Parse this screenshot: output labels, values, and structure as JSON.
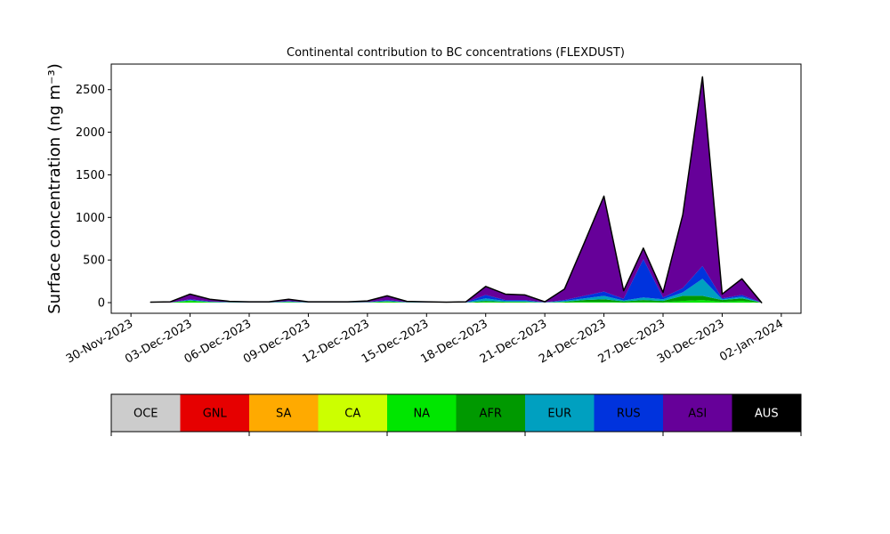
{
  "chart_data": {
    "type": "stacked_area",
    "title": "Continental contribution to BC concentrations (FLEXDUST)",
    "y_label": "Surface concentration (ng m⁻³)",
    "x": [
      "2023-12-01",
      "2023-12-02",
      "2023-12-03",
      "2023-12-04",
      "2023-12-05",
      "2023-12-06",
      "2023-12-07",
      "2023-12-08",
      "2023-12-09",
      "2023-12-10",
      "2023-12-11",
      "2023-12-12",
      "2023-12-13",
      "2023-12-14",
      "2023-12-15",
      "2023-12-16",
      "2023-12-17",
      "2023-12-18",
      "2023-12-19",
      "2023-12-20",
      "2023-12-21",
      "2023-12-22",
      "2023-12-23",
      "2023-12-24",
      "2023-12-25",
      "2023-12-26",
      "2023-12-27",
      "2023-12-28",
      "2023-12-29",
      "2023-12-30",
      "2023-12-31",
      "2024-01-01"
    ],
    "xlim": [
      "2023-11-29",
      "2024-01-03"
    ],
    "xticks": [
      {
        "value": "2023-11-30",
        "label": "30-Nov-2023"
      },
      {
        "value": "2023-12-03",
        "label": "03-Dec-2023"
      },
      {
        "value": "2023-12-06",
        "label": "06-Dec-2023"
      },
      {
        "value": "2023-12-09",
        "label": "09-Dec-2023"
      },
      {
        "value": "2023-12-12",
        "label": "12-Dec-2023"
      },
      {
        "value": "2023-12-15",
        "label": "15-Dec-2023"
      },
      {
        "value": "2023-12-18",
        "label": "18-Dec-2023"
      },
      {
        "value": "2023-12-21",
        "label": "21-Dec-2023"
      },
      {
        "value": "2023-12-24",
        "label": "24-Dec-2023"
      },
      {
        "value": "2023-12-27",
        "label": "27-Dec-2023"
      },
      {
        "value": "2023-12-30",
        "label": "30-Dec-2023"
      },
      {
        "value": "2024-01-02",
        "label": "02-Jan-2024"
      }
    ],
    "ylim": [
      -125,
      2800
    ],
    "yticks": [
      0,
      500,
      1000,
      1500,
      2000,
      2500
    ],
    "series": [
      {
        "name": "OCE",
        "color": "#cccccc",
        "values": [
          0,
          0,
          0,
          0,
          0,
          0,
          0,
          0,
          0,
          0,
          0,
          0,
          0,
          0,
          0,
          0,
          0,
          0,
          0,
          0,
          0,
          0,
          0,
          0,
          0,
          0,
          0,
          0,
          0,
          0,
          0,
          0
        ]
      },
      {
        "name": "GNL",
        "color": "#e60000",
        "values": [
          0,
          0,
          0,
          0,
          0,
          0,
          0,
          0,
          0,
          0,
          0,
          0,
          0,
          0,
          0,
          0,
          0,
          0,
          0,
          0,
          0,
          0,
          0,
          0,
          0,
          0,
          0,
          0,
          0,
          0,
          0,
          0
        ]
      },
      {
        "name": "SA",
        "color": "#ffaa00",
        "values": [
          0,
          0,
          0,
          0,
          0,
          0,
          0,
          0,
          0,
          0,
          0,
          0,
          0,
          0,
          0,
          0,
          0,
          0,
          0,
          0,
          0,
          0,
          0,
          0,
          0,
          0,
          0,
          0,
          0,
          0,
          0,
          0
        ]
      },
      {
        "name": "CA",
        "color": "#ccff00",
        "values": [
          0,
          0,
          0,
          0,
          0,
          0,
          0,
          0,
          0,
          0,
          0,
          0,
          0,
          0,
          0,
          0,
          0,
          0,
          0,
          0,
          0,
          0,
          0,
          0,
          0,
          0,
          0,
          0,
          0,
          0,
          0,
          0
        ]
      },
      {
        "name": "NA",
        "color": "#00e600",
        "values": [
          0,
          2,
          20,
          5,
          2,
          1,
          1,
          5,
          1,
          1,
          1,
          2,
          10,
          2,
          1,
          0,
          1,
          10,
          5,
          5,
          1,
          5,
          10,
          10,
          5,
          10,
          5,
          20,
          30,
          10,
          20,
          0
        ]
      },
      {
        "name": "AFR",
        "color": "#009900",
        "values": [
          0,
          0,
          5,
          2,
          1,
          1,
          1,
          3,
          1,
          1,
          1,
          2,
          5,
          1,
          1,
          0,
          1,
          10,
          5,
          5,
          1,
          5,
          20,
          30,
          10,
          20,
          15,
          60,
          50,
          20,
          30,
          0
        ]
      },
      {
        "name": "EUR",
        "color": "#00a0c0",
        "values": [
          0,
          0,
          5,
          3,
          2,
          1,
          1,
          5,
          1,
          1,
          1,
          2,
          5,
          2,
          1,
          0,
          1,
          30,
          10,
          10,
          1,
          10,
          20,
          40,
          10,
          30,
          20,
          40,
          200,
          10,
          20,
          0
        ]
      },
      {
        "name": "RUS",
        "color": "#0033dd",
        "values": [
          0,
          0,
          10,
          5,
          2,
          1,
          1,
          5,
          1,
          1,
          1,
          2,
          10,
          2,
          1,
          0,
          1,
          40,
          10,
          10,
          1,
          10,
          30,
          50,
          20,
          450,
          20,
          50,
          150,
          10,
          20,
          0
        ]
      },
      {
        "name": "ASI",
        "color": "#660099",
        "values": [
          5,
          8,
          60,
          25,
          8,
          6,
          6,
          22,
          6,
          6,
          6,
          12,
          50,
          8,
          6,
          5,
          6,
          100,
          70,
          60,
          6,
          130,
          620,
          1120,
          95,
          130,
          60,
          860,
          2220,
          50,
          190,
          0
        ]
      },
      {
        "name": "AUS",
        "color": "#000000",
        "values": [
          0,
          0,
          0,
          0,
          0,
          0,
          0,
          0,
          0,
          0,
          0,
          0,
          0,
          0,
          0,
          0,
          0,
          0,
          0,
          0,
          0,
          0,
          0,
          0,
          0,
          0,
          0,
          0,
          0,
          0,
          0,
          0
        ]
      }
    ]
  }
}
